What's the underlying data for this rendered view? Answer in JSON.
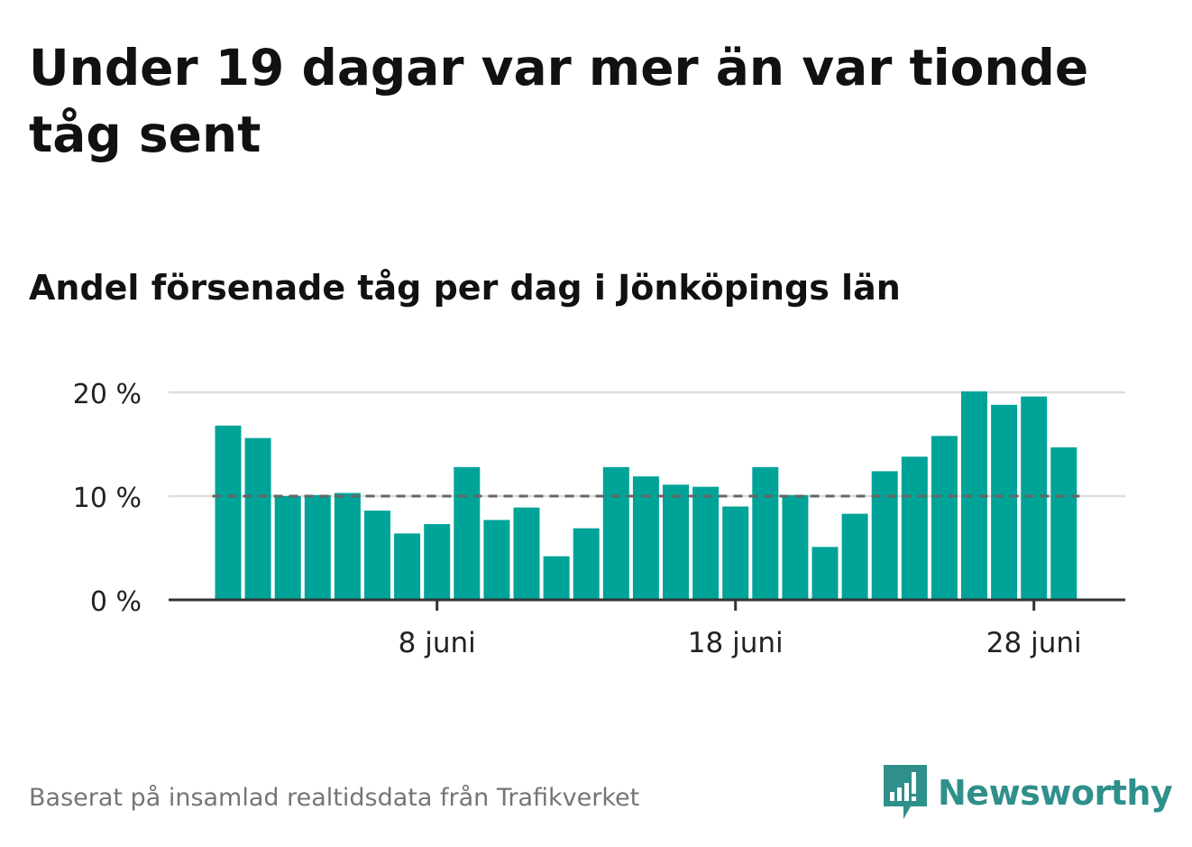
{
  "title": "Under 19 dagar var mer än var tionde tåg sent",
  "subtitle": "Andel försenade tåg per dag i Jönköpings län",
  "footer": "Baserat på insamlad realtidsdata från Trafikverket",
  "logo": {
    "text": "Newsworthy",
    "icon": "newsworthy-bars-icon",
    "color": "#2f8f8a"
  },
  "colors": {
    "bar": "#00a398",
    "reference_line": "#666666",
    "grid": "#dddddd",
    "axis": "#333333"
  },
  "chart_data": {
    "type": "bar",
    "title": "Andel försenade tåg per dag i Jönköpings län",
    "xlabel": "",
    "ylabel": "",
    "x_unit": "day of June",
    "categories": [
      1,
      2,
      3,
      4,
      5,
      6,
      7,
      8,
      9,
      10,
      11,
      12,
      13,
      14,
      15,
      16,
      17,
      18,
      19,
      20,
      21,
      22,
      23,
      24,
      25,
      26,
      27,
      28,
      29
    ],
    "values": [
      16.8,
      15.6,
      10.0,
      10.1,
      10.3,
      8.6,
      6.4,
      7.3,
      12.8,
      7.7,
      8.9,
      4.2,
      6.9,
      12.8,
      11.9,
      11.1,
      10.9,
      9.0,
      12.8,
      10.1,
      5.1,
      8.3,
      12.4,
      13.8,
      15.8,
      20.1,
      18.8,
      19.6,
      14.7
    ],
    "ylim": [
      0,
      20
    ],
    "yticks": [
      0,
      10,
      20
    ],
    "ytick_labels": [
      "0 %",
      "10 %",
      "20 %"
    ],
    "xticks": [
      8,
      18,
      28
    ],
    "xtick_labels": [
      "8 juni",
      "18 juni",
      "28 juni"
    ],
    "reference_line": 10,
    "grid": true,
    "legend": "none"
  }
}
